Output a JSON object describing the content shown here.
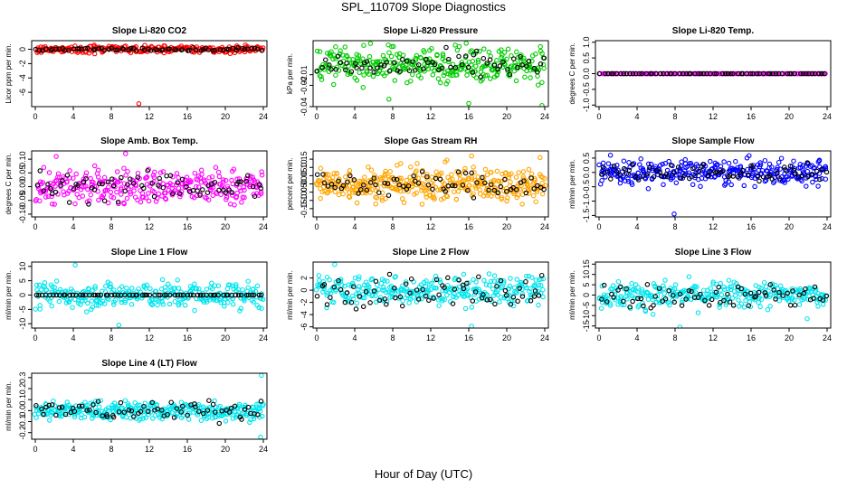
{
  "figure": {
    "title": "SPL_110709  Slope Diagnostics",
    "xlabel": "Hour of Day (UTC)"
  },
  "colors": {
    "co2": "#ff0000",
    "pressure": "#00cc00",
    "temp": "#ff00ff",
    "box": "#ff00ff",
    "rh": "#ffa500",
    "flow": "#0000ff",
    "line": "#00e5ee",
    "overlay": "#000000"
  },
  "chart_data": [
    {
      "type": "scatter",
      "title": "Slope Li-820 CO2",
      "ylabel": "Licor ppm per min.",
      "xlim": [
        0,
        24
      ],
      "ylim": [
        -8,
        1.2
      ],
      "yticks": [
        -6,
        -4,
        -2,
        0
      ],
      "ytick_labels": [
        "-6",
        "-4",
        "-2",
        "0"
      ],
      "xticks": [
        0,
        4,
        8,
        12,
        16,
        20,
        24
      ],
      "series": [
        {
          "name": "all samples",
          "color_key": "co2",
          "center": 0,
          "spread": 0.35,
          "count": 240,
          "outliers": [
            [
              10.9,
              -7.6
            ],
            [
              22.1,
              0.6
            ],
            [
              20.5,
              -0.6
            ]
          ]
        },
        {
          "name": "overlay",
          "color_key": "overlay",
          "center": 0,
          "spread": 0.15,
          "count": 70
        }
      ]
    },
    {
      "type": "scatter",
      "title": "Slope Li-820 Pressure",
      "ylabel": "kPa per min.",
      "xlim": [
        0,
        24
      ],
      "ylim": [
        -0.04,
        0.022
      ],
      "yticks": [
        -0.04,
        -0.02,
        -0.01
      ],
      "ytick_labels": [
        "-0.04",
        "-0.02",
        "-0.01"
      ],
      "xticks": [
        0,
        4,
        8,
        12,
        16,
        20,
        24
      ],
      "series": [
        {
          "name": "all samples",
          "color_key": "pressure",
          "center": 0,
          "spread": 0.011,
          "count": 320,
          "outliers": [
            [
              7.6,
              -0.033
            ],
            [
              16.0,
              -0.037
            ],
            [
              23.7,
              -0.039
            ]
          ]
        },
        {
          "name": "overlay",
          "color_key": "overlay",
          "center": -0.002,
          "spread": 0.008,
          "count": 70
        }
      ]
    },
    {
      "type": "scatter",
      "title": "Slope Li-820 Temp.",
      "ylabel": "degrees C per min.",
      "xlim": [
        0,
        24
      ],
      "ylim": [
        -1.05,
        1.05
      ],
      "yticks": [
        -1,
        -0.5,
        0,
        0.5,
        1
      ],
      "ytick_labels": [
        "-1.0",
        "-0.5",
        "0.0",
        "0.5",
        "1.0"
      ],
      "xticks": [
        0,
        4,
        8,
        12,
        16,
        20,
        24
      ],
      "series": [
        {
          "name": "all samples",
          "color_key": "temp",
          "center": 0,
          "spread": 0,
          "count": 180,
          "outliers": []
        },
        {
          "name": "overlay",
          "color_key": "overlay",
          "center": 0,
          "spread": 0,
          "count": 70
        }
      ]
    },
    {
      "type": "scatter",
      "title": "Slope Amb. Box Temp.",
      "ylabel": "degrees C per min.",
      "xlim": [
        0,
        24
      ],
      "ylim": [
        -0.11,
        0.13
      ],
      "yticks": [
        -0.1,
        -0.05,
        0,
        0.05,
        0.1
      ],
      "ytick_labels": [
        "-0.10",
        "-0.05",
        "0.00",
        "0.05",
        "0.10"
      ],
      "xticks": [
        0,
        4,
        8,
        12,
        16,
        20,
        24
      ],
      "series": [
        {
          "name": "all samples",
          "color_key": "box",
          "center": 0,
          "spread": 0.045,
          "count": 300,
          "outliers": [
            [
              9.5,
              0.12
            ],
            [
              2.2,
              0.11
            ]
          ]
        },
        {
          "name": "overlay",
          "color_key": "overlay",
          "center": 0,
          "spread": 0.035,
          "count": 70
        }
      ]
    },
    {
      "type": "scatter",
      "title": "Slope Gas Stream RH",
      "ylabel": "percent per min.",
      "xlim": [
        0,
        24
      ],
      "ylim": [
        -0.2,
        0.2
      ],
      "yticks": [
        -0.15,
        -0.1,
        -0.05,
        0,
        0.05,
        0.1,
        0.15
      ],
      "ytick_labels": [
        "-0.15",
        "-0.10",
        "-0.05",
        "0.00",
        "0.05",
        "0.10",
        "0.15"
      ],
      "xticks": [
        0,
        4,
        8,
        12,
        16,
        20,
        24
      ],
      "series": [
        {
          "name": "all samples",
          "color_key": "rh",
          "center": 0,
          "spread": 0.07,
          "count": 380,
          "outliers": [
            [
              16.3,
              0.17
            ],
            [
              23.5,
              0.16
            ]
          ]
        },
        {
          "name": "overlay",
          "color_key": "overlay",
          "center": 0,
          "spread": 0.05,
          "count": 70
        }
      ]
    },
    {
      "type": "scatter",
      "title": "Slope Sample Flow",
      "ylabel": "ml/min per min.",
      "xlim": [
        0,
        24
      ],
      "ylim": [
        -1.55,
        0.75
      ],
      "yticks": [
        -1.5,
        -1,
        -0.5,
        0,
        0.5
      ],
      "ytick_labels": [
        "-1.5",
        "-1.0",
        "-0.5",
        "0.0",
        "0.5"
      ],
      "xticks": [
        0,
        4,
        8,
        12,
        16,
        20,
        24
      ],
      "series": [
        {
          "name": "all samples",
          "color_key": "flow",
          "center": 0,
          "spread": 0.3,
          "count": 320,
          "outliers": [
            [
              7.9,
              -1.45
            ],
            [
              1.2,
              0.6
            ]
          ]
        },
        {
          "name": "overlay",
          "color_key": "overlay",
          "center": 0,
          "spread": 0.22,
          "count": 70
        }
      ]
    },
    {
      "type": "scatter",
      "title": "Slope Line 1 Flow",
      "ylabel": "ml/min per min.",
      "xlim": [
        0,
        24
      ],
      "ylim": [
        -11.5,
        11.5
      ],
      "yticks": [
        -10,
        -5,
        0,
        5,
        10
      ],
      "ytick_labels": [
        "-10",
        "-5",
        "0",
        "5",
        "10"
      ],
      "xticks": [
        0,
        4,
        8,
        12,
        16,
        20,
        24
      ],
      "series": [
        {
          "name": "all samples",
          "color_key": "line",
          "center": 0,
          "spread": 3.2,
          "count": 300,
          "outliers": [
            [
              8.8,
              -10.5
            ],
            [
              4.2,
              10.5
            ]
          ]
        },
        {
          "name": "overlay",
          "color_key": "overlay",
          "center": 0,
          "spread": 0,
          "count": 70
        }
      ]
    },
    {
      "type": "scatter",
      "title": "Slope Line 2 Flow",
      "ylabel": "ml/min per min.",
      "xlim": [
        0,
        24
      ],
      "ylim": [
        -6.2,
        4.6
      ],
      "yticks": [
        -6,
        -4,
        -2,
        0,
        2
      ],
      "ytick_labels": [
        "-6",
        "-4",
        "-2",
        "0",
        "2"
      ],
      "xticks": [
        0,
        4,
        8,
        12,
        16,
        20,
        24
      ],
      "series": [
        {
          "name": "all samples",
          "color_key": "line",
          "center": 0,
          "spread": 1.6,
          "count": 300,
          "outliers": [
            [
              16.3,
              -5.9
            ],
            [
              1.9,
              4.2
            ]
          ]
        },
        {
          "name": "overlay",
          "color_key": "overlay",
          "center": 0,
          "spread": 1.8,
          "count": 70
        }
      ]
    },
    {
      "type": "scatter",
      "title": "Slope Line 3 Flow",
      "ylabel": "ml/min per min.",
      "xlim": [
        0,
        24
      ],
      "ylim": [
        -16,
        16
      ],
      "yticks": [
        -15,
        -10,
        -5,
        0,
        5,
        10,
        15
      ],
      "ytick_labels": [
        "-15",
        "-10",
        "-5",
        "0",
        "5",
        "10",
        "15"
      ],
      "xticks": [
        0,
        4,
        8,
        12,
        16,
        20,
        24
      ],
      "series": [
        {
          "name": "all samples",
          "color_key": "line",
          "center": 0,
          "spread": 4.5,
          "count": 300,
          "outliers": [
            [
              8.5,
              -15.5
            ],
            [
              21.9,
              -11.5
            ]
          ]
        },
        {
          "name": "overlay",
          "color_key": "overlay",
          "center": 0,
          "spread": 4,
          "count": 70
        }
      ]
    },
    {
      "type": "scatter",
      "title": "Slope Line 4 (LT) Flow",
      "ylabel": "ml/min per min.",
      "xlim": [
        0,
        24
      ],
      "ylim": [
        -0.26,
        0.34
      ],
      "yticks": [
        -0.2,
        -0.1,
        0,
        0.1,
        0.2,
        0.3
      ],
      "ytick_labels": [
        "-0.2",
        "-0.1",
        "0.0",
        "0.1",
        "0.2",
        "0.3"
      ],
      "xticks": [
        0,
        4,
        8,
        12,
        16,
        20,
        24
      ],
      "series": [
        {
          "name": "all samples",
          "color_key": "line",
          "center": 0,
          "spread": 0.06,
          "count": 320,
          "outliers": [
            [
              23.8,
              0.32
            ],
            [
              23.7,
              -0.24
            ]
          ]
        },
        {
          "name": "overlay",
          "color_key": "overlay",
          "center": 0,
          "spread": 0.06,
          "count": 70
        }
      ]
    }
  ]
}
